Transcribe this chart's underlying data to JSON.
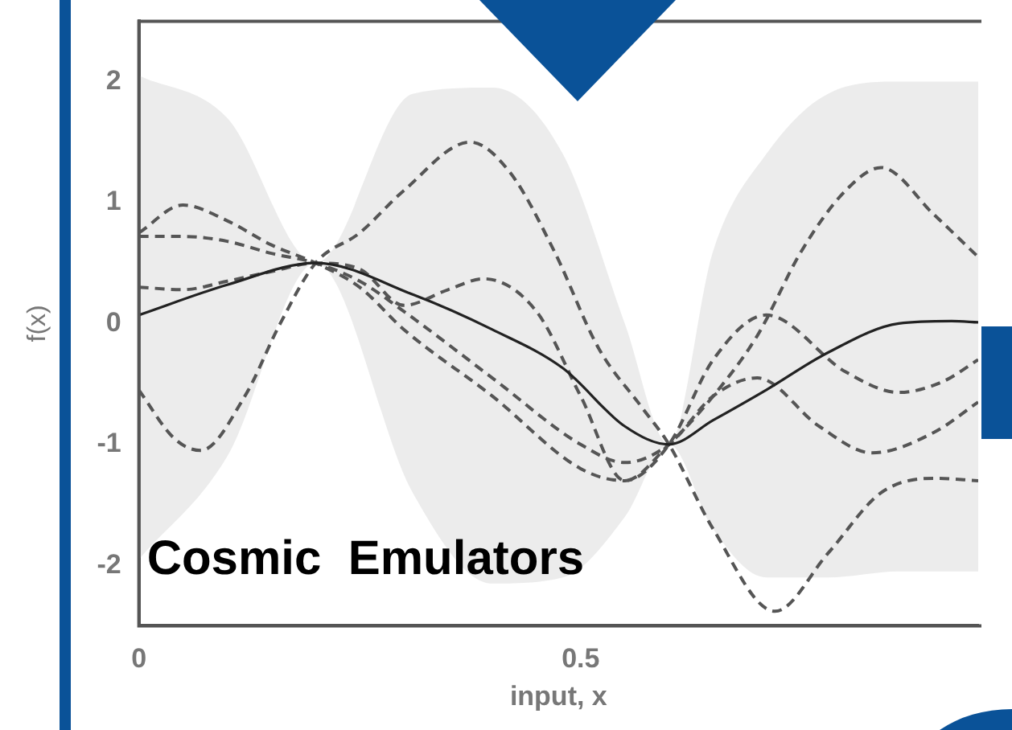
{
  "chart_data": {
    "type": "line",
    "xlabel": "input, x",
    "ylabel": "f(x)",
    "xlim": [
      0,
      0.95
    ],
    "xticks": [
      0,
      0.5
    ],
    "ylim": [
      -2.5,
      2.5
    ],
    "yticks": [
      -2,
      -1,
      0,
      1,
      2
    ],
    "grid": false,
    "legend": false,
    "marker": "none",
    "annotations": [
      "Cosmic  Emulators"
    ],
    "series": [
      {
        "color": "#222222",
        "line_style": "solid",
        "x": [
          0,
          0.1,
          0.2,
          0.31,
          0.4,
          0.48,
          0.55,
          0.6,
          0.65,
          0.71,
          0.78,
          0.86,
          0.92,
          0.95
        ],
        "values": [
          0.07,
          0.32,
          0.5,
          0.24,
          -0.05,
          -0.37,
          -0.85,
          -1.0,
          -0.8,
          -0.55,
          -0.24,
          0,
          0.02,
          0.01
        ],
        "lower": [
          -1.95,
          -1.1,
          0.5,
          -1.4,
          -2.15,
          -2.1,
          -1.6,
          -1.0,
          -1.7,
          -2.1,
          -2.1,
          -2.05,
          -2.05,
          -2.05
        ],
        "upper": [
          2.05,
          1.7,
          0.5,
          1.9,
          1.95,
          1.4,
          0.0,
          -1.0,
          0.6,
          1.4,
          1.9,
          2.0,
          2.0,
          2.0
        ]
      },
      {
        "color": "#555555",
        "line_style": "dashed",
        "x": [
          0,
          0.05,
          0.1,
          0.15,
          0.2,
          0.25,
          0.3,
          0.4,
          0.5,
          0.55,
          0.6,
          0.65,
          0.71,
          0.8,
          0.86,
          0.91,
          0.95
        ],
        "values": [
          0.75,
          0.98,
          0.85,
          0.65,
          0.5,
          0.3,
          -0.05,
          -0.6,
          -1.2,
          -1.3,
          -1.0,
          -0.3,
          0.07,
          -0.4,
          -0.57,
          -0.48,
          -0.3
        ]
      },
      {
        "color": "#555555",
        "line_style": "dashed",
        "x": [
          0,
          0.05,
          0.1,
          0.15,
          0.2,
          0.25,
          0.3,
          0.4,
          0.5,
          0.55,
          0.6,
          0.65,
          0.7,
          0.77,
          0.83,
          0.9,
          0.95
        ],
        "values": [
          0.72,
          0.72,
          0.68,
          0.58,
          0.5,
          0.35,
          0.1,
          -0.45,
          -1.0,
          -1.15,
          -1.0,
          -0.6,
          -0.45,
          -0.85,
          -1.07,
          -0.9,
          -0.65
        ]
      },
      {
        "color": "#555555",
        "line_style": "dashed",
        "x": [
          0,
          0.05,
          0.1,
          0.15,
          0.2,
          0.25,
          0.3,
          0.35,
          0.39,
          0.45,
          0.5,
          0.55,
          0.6,
          0.65,
          0.7,
          0.75,
          0.8,
          0.84,
          0.9,
          0.95
        ],
        "values": [
          0.3,
          0.28,
          0.35,
          0.43,
          0.5,
          0.45,
          0.15,
          0.28,
          0.37,
          0.1,
          -0.6,
          -1.3,
          -1.0,
          -0.6,
          -0.1,
          0.6,
          1.1,
          1.29,
          0.9,
          0.55
        ]
      },
      {
        "color": "#555555",
        "line_style": "dashed",
        "x": [
          0,
          0.04,
          0.07,
          0.12,
          0.16,
          0.2,
          0.25,
          0.3,
          0.375,
          0.42,
          0.47,
          0.52,
          0.57,
          0.6,
          0.65,
          0.72,
          0.78,
          0.84,
          0.9,
          0.95
        ],
        "values": [
          -0.55,
          -0.95,
          -1.05,
          -0.6,
          0.0,
          0.5,
          0.75,
          1.1,
          1.5,
          1.25,
          0.6,
          -0.2,
          -0.7,
          -1.0,
          -1.7,
          -2.38,
          -1.9,
          -1.4,
          -1.28,
          -1.3
        ]
      }
    ]
  }
}
